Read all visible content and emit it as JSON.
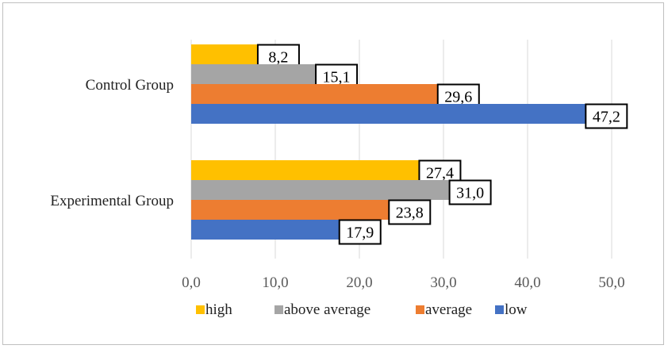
{
  "chart_data": {
    "type": "bar",
    "orientation": "horizontal",
    "categories": [
      "Control Group",
      "Experimental Group"
    ],
    "series": [
      {
        "name": "high",
        "color": "#FFC000",
        "values": [
          8.2,
          27.4
        ],
        "labels": [
          "8,2",
          "27,4"
        ]
      },
      {
        "name": "above average",
        "color": "#A5A5A5",
        "values": [
          15.1,
          31.0
        ],
        "labels": [
          "15,1",
          "31,0"
        ]
      },
      {
        "name": "average",
        "color": "#ED7D31",
        "values": [
          29.6,
          23.8
        ],
        "labels": [
          "29,6",
          "23,8"
        ]
      },
      {
        "name": "low",
        "color": "#4472C4",
        "values": [
          47.2,
          17.9
        ],
        "labels": [
          "47,2",
          "17,9"
        ]
      }
    ],
    "xlim": [
      0,
      55
    ],
    "x_ticks": [
      0,
      10,
      20,
      30,
      40,
      50
    ],
    "x_tick_labels": [
      "0,0",
      "10,0",
      "20,0",
      "30,0",
      "40,0",
      "50,0"
    ],
    "grid": true,
    "legend_position": "bottom",
    "title": "",
    "xlabel": "",
    "ylabel": ""
  }
}
